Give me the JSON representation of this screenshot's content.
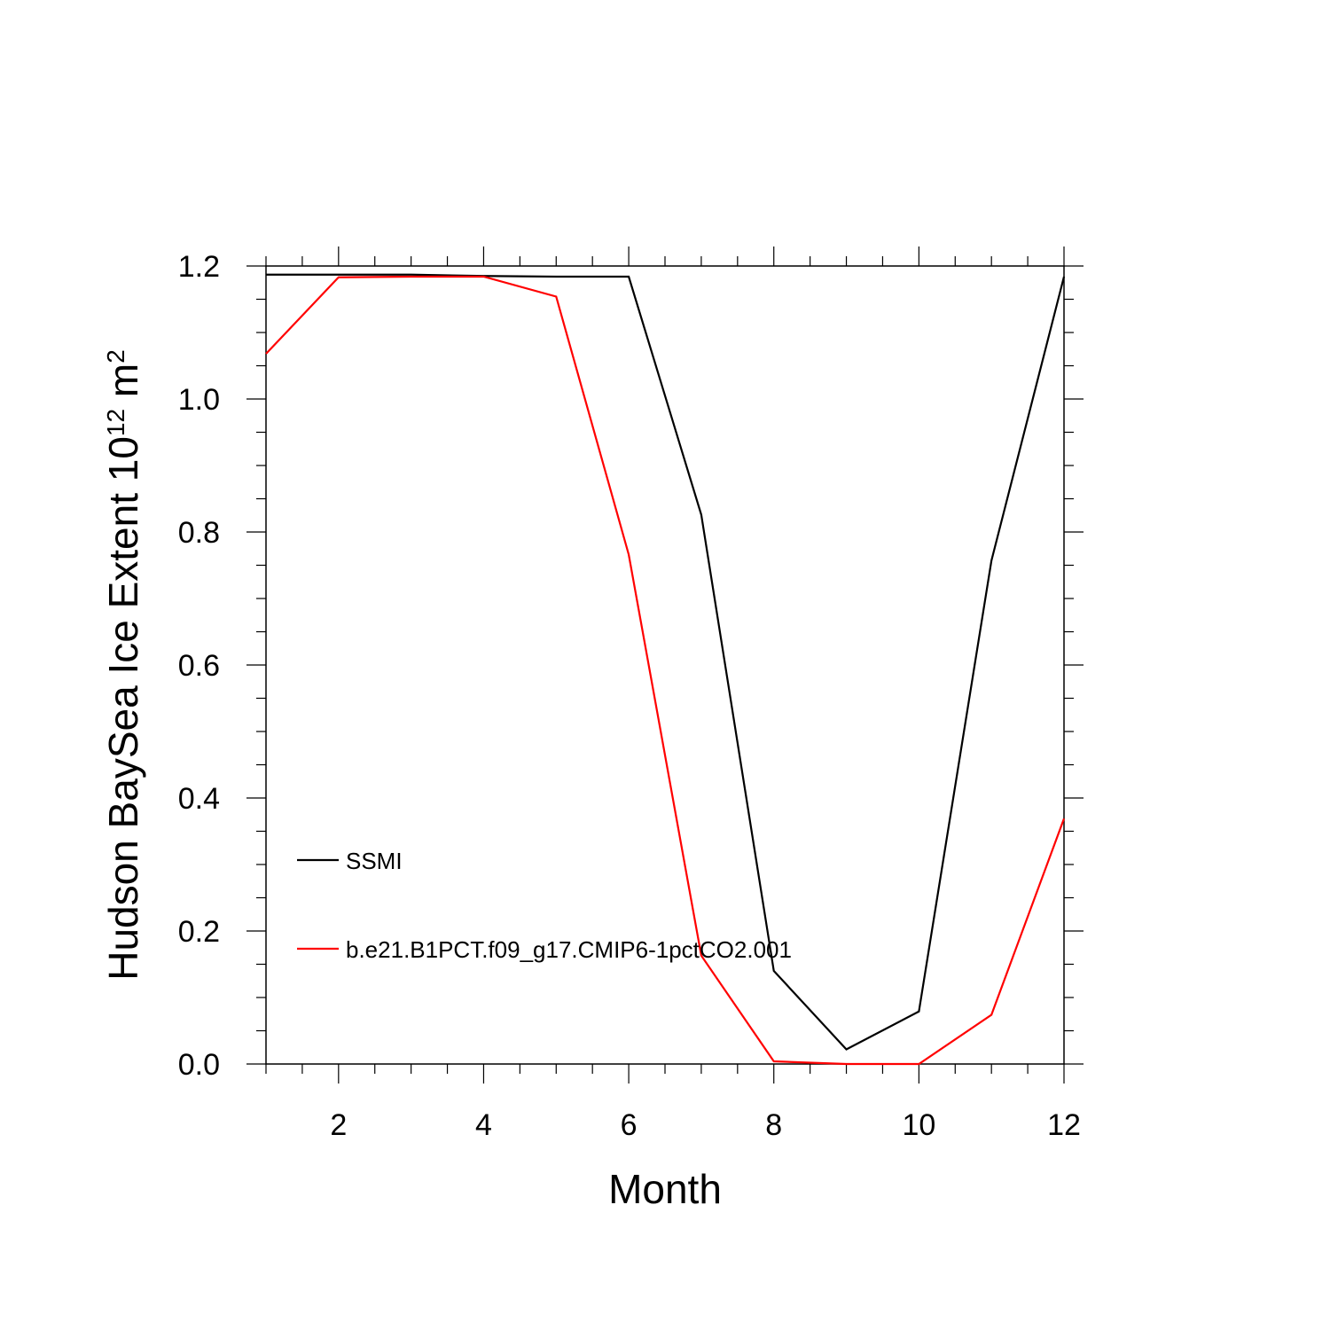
{
  "chart_data": {
    "type": "line",
    "title": "",
    "xlabel": "Month",
    "ylabel": "Hudson BaySea Ice Extent 10",
    "ylabel_exponent": "12",
    "ylabel_unit": " m",
    "ylabel_unit_exponent": "2",
    "xlim": [
      1,
      12
    ],
    "ylim": [
      0.0,
      1.2
    ],
    "x_ticks": [
      2,
      4,
      6,
      8,
      10,
      12
    ],
    "x_tick_labels": [
      "2",
      "4",
      "6",
      "8",
      "10",
      "12"
    ],
    "y_ticks": [
      0.0,
      0.2,
      0.4,
      0.6,
      0.8,
      1.0,
      1.2
    ],
    "y_tick_labels": [
      "0.0",
      "0.2",
      "0.4",
      "0.6",
      "0.8",
      "1.0",
      "1.2"
    ],
    "grid": false,
    "legend_position": "lower-left",
    "x": [
      1,
      2,
      3,
      4,
      5,
      6,
      7,
      8,
      9,
      10,
      11,
      12
    ],
    "series": [
      {
        "name": "SSMI",
        "color": "#000000",
        "values": [
          1.187,
          1.187,
          1.187,
          1.185,
          1.184,
          1.184,
          0.826,
          0.14,
          0.022,
          0.079,
          0.757,
          1.184
        ]
      },
      {
        "name": "b.e21.B1PCT.f09_g17.CMIP6-1pctCO2.001",
        "color": "#ff0000",
        "values": [
          1.068,
          1.183,
          1.184,
          1.184,
          1.154,
          0.766,
          0.163,
          0.004,
          0.0,
          0.0,
          0.074,
          0.369
        ]
      }
    ]
  }
}
